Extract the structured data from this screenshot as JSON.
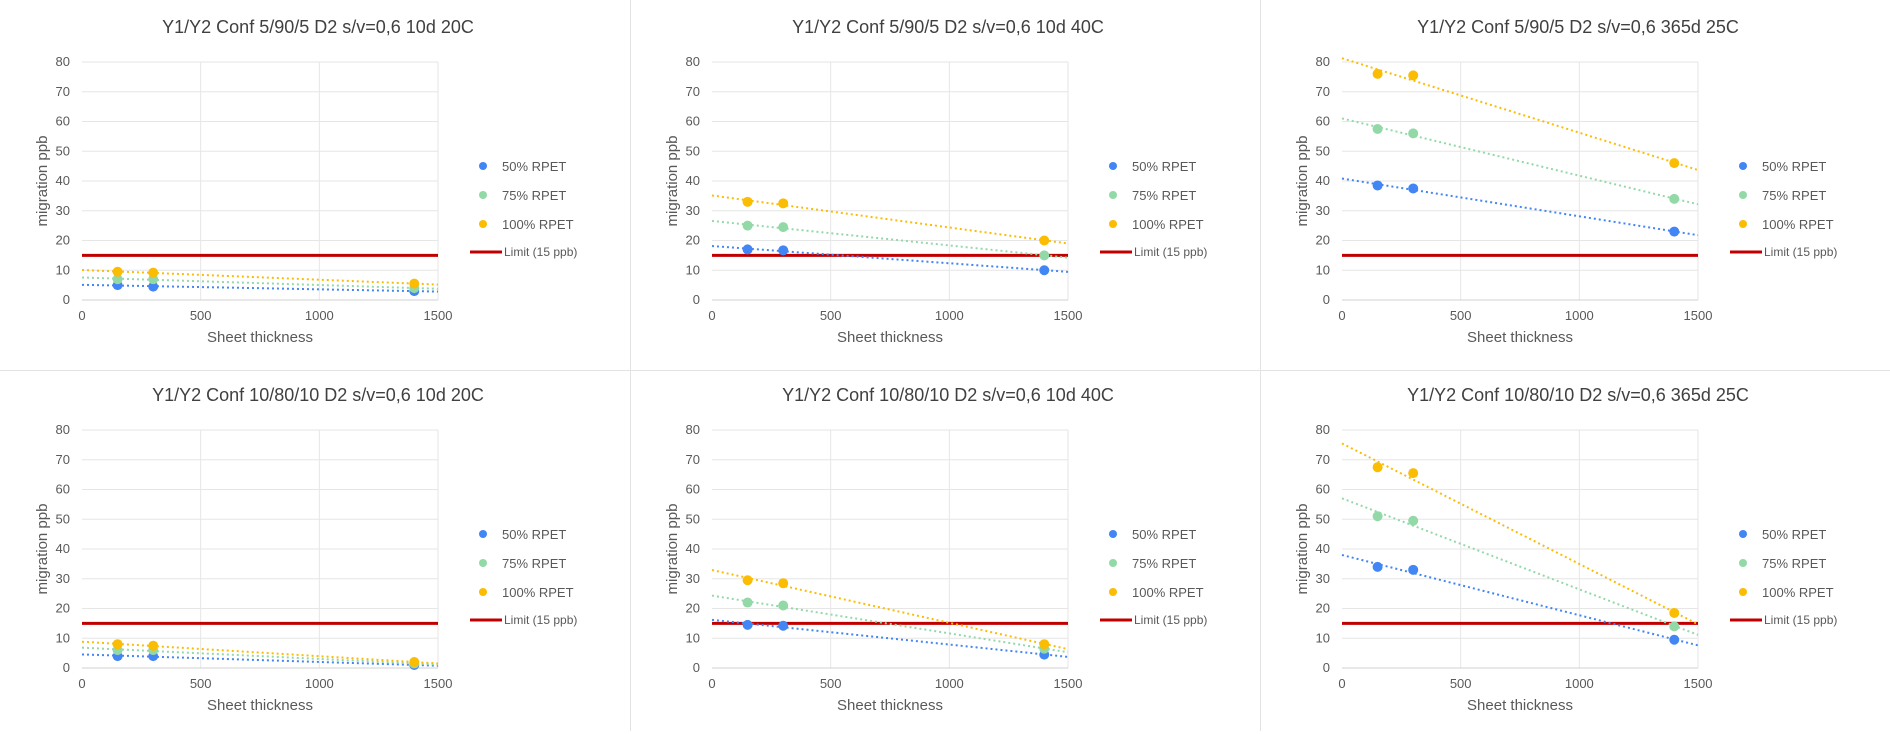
{
  "colors": {
    "rpet50": "#4285f4",
    "rpet75": "#93d9a8",
    "rpet100": "#fbbc04",
    "limit": "#c00000",
    "grid": "#e6e6e6",
    "axis_text": "#595959",
    "title_text": "#404040"
  },
  "chart_data": [
    {
      "type": "scatter",
      "title": "Y1/Y2 Conf  5/90/5 D2  s/v=0,6 10d 20C",
      "xlabel": "Sheet thickness",
      "ylabel": "migration ppb",
      "xlim": [
        0,
        1500
      ],
      "ylim": [
        0,
        80
      ],
      "xticks": [
        0,
        500,
        1000,
        1500
      ],
      "yticks": [
        0,
        10,
        20,
        30,
        40,
        50,
        60,
        70,
        80
      ],
      "grid": true,
      "legend_position": "right",
      "series": [
        {
          "name": "50% RPET",
          "x": [
            150,
            300,
            1400
          ],
          "y": [
            5,
            4.5,
            3
          ],
          "trendline": "linear"
        },
        {
          "name": "75% RPET",
          "x": [
            150,
            300,
            1400
          ],
          "y": [
            7,
            7,
            4
          ],
          "trendline": "linear"
        },
        {
          "name": "100% RPET",
          "x": [
            150,
            300,
            1400
          ],
          "y": [
            9.5,
            9.2,
            5.5
          ],
          "trendline": "linear"
        }
      ],
      "limit": {
        "name": "Limit (15 ppb)",
        "value": 15
      }
    },
    {
      "type": "scatter",
      "title": "Y1/Y2 Conf  5/90/5 D2  s/v=0,6 10d 40C",
      "xlabel": "Sheet thickness",
      "ylabel": "migration ppb",
      "xlim": [
        0,
        1500
      ],
      "ylim": [
        0,
        80
      ],
      "xticks": [
        0,
        500,
        1000,
        1500
      ],
      "yticks": [
        0,
        10,
        20,
        30,
        40,
        50,
        60,
        70,
        80
      ],
      "grid": true,
      "legend_position": "right",
      "series": [
        {
          "name": "50% RPET",
          "x": [
            150,
            300,
            1400
          ],
          "y": [
            17,
            16.7,
            10
          ],
          "trendline": "linear"
        },
        {
          "name": "75% RPET",
          "x": [
            150,
            300,
            1400
          ],
          "y": [
            25,
            24.5,
            15
          ],
          "trendline": "linear"
        },
        {
          "name": "100% RPET",
          "x": [
            150,
            300,
            1400
          ],
          "y": [
            33,
            32.5,
            20
          ],
          "trendline": "linear"
        }
      ],
      "limit": {
        "name": "Limit (15 ppb)",
        "value": 15
      }
    },
    {
      "type": "scatter",
      "title": "Y1/Y2 Conf  5/90/5 D2  s/v=0,6 365d 25C",
      "xlabel": "Sheet thickness",
      "ylabel": "migration ppb",
      "xlim": [
        0,
        1500
      ],
      "ylim": [
        0,
        80
      ],
      "xticks": [
        0,
        500,
        1000,
        1500
      ],
      "yticks": [
        0,
        10,
        20,
        30,
        40,
        50,
        60,
        70,
        80
      ],
      "grid": true,
      "legend_position": "right",
      "series": [
        {
          "name": "50% RPET",
          "x": [
            150,
            300,
            1400
          ],
          "y": [
            38.5,
            37.5,
            23
          ],
          "trendline": "linear"
        },
        {
          "name": "75% RPET",
          "x": [
            150,
            300,
            1400
          ],
          "y": [
            57.5,
            56,
            34
          ],
          "trendline": "linear"
        },
        {
          "name": "100% RPET",
          "x": [
            150,
            300,
            1400
          ],
          "y": [
            76,
            75.5,
            46
          ],
          "trendline": "linear"
        }
      ],
      "limit": {
        "name": "Limit (15 ppb)",
        "value": 15
      }
    },
    {
      "type": "scatter",
      "title": "Y1/Y2 Conf 10/80/10 D2  s/v=0,6 10d 20C",
      "xlabel": "Sheet thickness",
      "ylabel": "migration ppb",
      "xlim": [
        0,
        1500
      ],
      "ylim": [
        0,
        80
      ],
      "xticks": [
        0,
        500,
        1000,
        1500
      ],
      "yticks": [
        0,
        10,
        20,
        30,
        40,
        50,
        60,
        70,
        80
      ],
      "grid": true,
      "legend_position": "right",
      "series": [
        {
          "name": "50% RPET",
          "x": [
            150,
            300,
            1400
          ],
          "y": [
            4,
            4,
            1
          ],
          "trendline": "linear"
        },
        {
          "name": "75% RPET",
          "x": [
            150,
            300,
            1400
          ],
          "y": [
            6,
            6,
            1.5
          ],
          "trendline": "linear"
        },
        {
          "name": "100% RPET",
          "x": [
            150,
            300,
            1400
          ],
          "y": [
            8,
            7.5,
            2
          ],
          "trendline": "linear"
        }
      ],
      "limit": {
        "name": "Limit (15 ppb)",
        "value": 15
      }
    },
    {
      "type": "scatter",
      "title": "Y1/Y2 Conf 10/80/10 D2  s/v=0,6 10d 40C",
      "xlabel": "Sheet thickness",
      "ylabel": "migration ppb",
      "xlim": [
        0,
        1500
      ],
      "ylim": [
        0,
        80
      ],
      "xticks": [
        0,
        500,
        1000,
        1500
      ],
      "yticks": [
        0,
        10,
        20,
        30,
        40,
        50,
        60,
        70,
        80
      ],
      "grid": true,
      "legend_position": "right",
      "series": [
        {
          "name": "50% RPET",
          "x": [
            150,
            300,
            1400
          ],
          "y": [
            14.5,
            14.2,
            4.5
          ],
          "trendline": "linear"
        },
        {
          "name": "75% RPET",
          "x": [
            150,
            300,
            1400
          ],
          "y": [
            22,
            21,
            6.5
          ],
          "trendline": "linear"
        },
        {
          "name": "100% RPET",
          "x": [
            150,
            300,
            1400
          ],
          "y": [
            29.5,
            28.5,
            8
          ],
          "trendline": "linear"
        }
      ],
      "limit": {
        "name": "Limit (15 ppb)",
        "value": 15
      }
    },
    {
      "type": "scatter",
      "title": "Y1/Y2 Conf 10/80/10 D2  s/v=0,6 365d 25C",
      "xlabel": "Sheet thickness",
      "ylabel": "migration ppb",
      "xlim": [
        0,
        1500
      ],
      "ylim": [
        0,
        80
      ],
      "xticks": [
        0,
        500,
        1000,
        1500
      ],
      "yticks": [
        0,
        10,
        20,
        30,
        40,
        50,
        60,
        70,
        80
      ],
      "grid": true,
      "legend_position": "right",
      "series": [
        {
          "name": "50% RPET",
          "x": [
            150,
            300,
            1400
          ],
          "y": [
            34,
            33,
            9.5
          ],
          "trendline": "linear"
        },
        {
          "name": "75% RPET",
          "x": [
            150,
            300,
            1400
          ],
          "y": [
            51,
            49.5,
            14
          ],
          "trendline": "linear"
        },
        {
          "name": "100% RPET",
          "x": [
            150,
            300,
            1400
          ],
          "y": [
            67.5,
            65.5,
            18.5
          ],
          "trendline": "linear"
        }
      ],
      "limit": {
        "name": "Limit (15 ppb)",
        "value": 15
      }
    }
  ]
}
